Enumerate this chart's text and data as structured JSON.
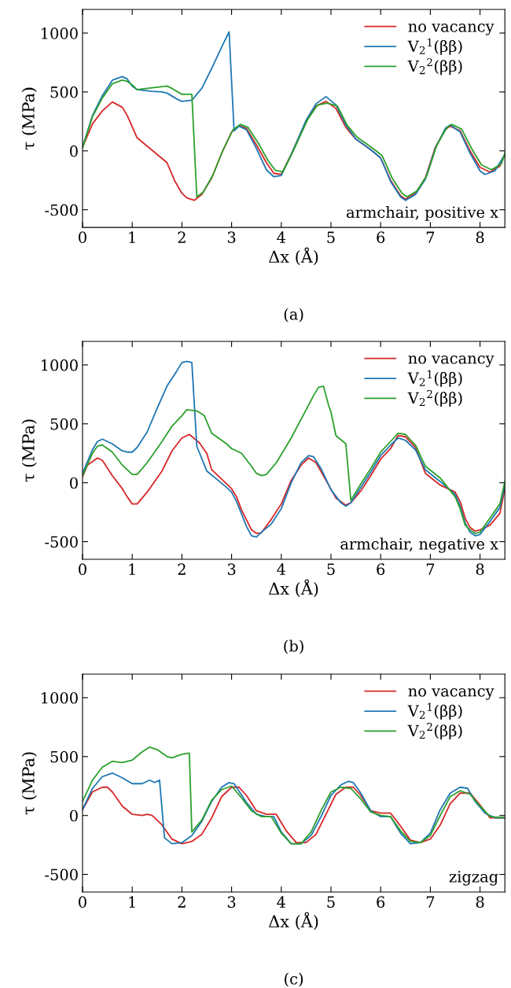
{
  "chart_data": [
    {
      "type": "line",
      "xlabel": "Δx (Å)",
      "ylabel": "τ (MPa)",
      "xlim": [
        0,
        8.5
      ],
      "ylim": [
        -650,
        1200
      ],
      "xticks": [
        0,
        1,
        2,
        3,
        4,
        5,
        6,
        7,
        8
      ],
      "yticks": [
        -500,
        0,
        500,
        1000
      ],
      "legend": "top right",
      "grid": false,
      "line_style": "solid",
      "marker": "none",
      "annotations": [
        "armchair, positive x",
        "(a)"
      ],
      "series": [
        {
          "name": "no vacancy",
          "color": "#d62728",
          "x": [
            0,
            0.2,
            0.4,
            0.6,
            0.8,
            0.9,
            1.1,
            1.3,
            1.5,
            1.7,
            1.85,
            2.0,
            2.1,
            2.25,
            2.4,
            2.6,
            2.8,
            3.0,
            3.15,
            3.3,
            3.5,
            3.7,
            3.85,
            4.0,
            4.2,
            4.5,
            4.7,
            4.9,
            5.1,
            5.3,
            5.5,
            5.8,
            6.0,
            6.2,
            6.4,
            6.5,
            6.7,
            6.9,
            7.1,
            7.3,
            7.4,
            7.6,
            7.8,
            8.0,
            8.2,
            8.4,
            8.5
          ],
          "values": [
            30,
            230,
            340,
            415,
            370,
            300,
            110,
            40,
            -30,
            -100,
            -250,
            -360,
            -400,
            -420,
            -370,
            -230,
            -20,
            160,
            215,
            190,
            50,
            -100,
            -190,
            -200,
            -30,
            250,
            380,
            420,
            360,
            200,
            100,
            10,
            -60,
            -250,
            -380,
            -410,
            -360,
            -230,
            30,
            180,
            210,
            170,
            0,
            -140,
            -180,
            -130,
            -30
          ]
        },
        {
          "name": "V$_{2}$$^{1}$(ββ)",
          "color": "#1f77b4",
          "x": [
            0,
            0.2,
            0.4,
            0.6,
            0.8,
            0.9,
            1.0,
            1.1,
            1.4,
            1.6,
            1.7,
            1.9,
            2.0,
            2.2,
            2.4,
            2.6,
            2.8,
            2.95,
            3.05,
            3.15,
            3.3,
            3.5,
            3.7,
            3.85,
            4.0,
            4.2,
            4.5,
            4.7,
            4.9,
            5.1,
            5.3,
            5.5,
            5.8,
            6.0,
            6.2,
            6.4,
            6.5,
            6.7,
            6.9,
            7.1,
            7.3,
            7.4,
            7.6,
            7.8,
            8.0,
            8.1,
            8.3,
            8.5
          ],
          "values": [
            30,
            300,
            470,
            600,
            630,
            610,
            550,
            520,
            505,
            500,
            490,
            440,
            420,
            430,
            530,
            700,
            880,
            1010,
            170,
            210,
            180,
            20,
            -160,
            -220,
            -210,
            -30,
            260,
            400,
            460,
            390,
            220,
            100,
            10,
            -60,
            -260,
            -390,
            -420,
            -370,
            -240,
            20,
            190,
            220,
            160,
            -20,
            -170,
            -200,
            -170,
            -30
          ]
        },
        {
          "name": "V$_{2}$$^{2}$(ββ)",
          "color": "#2ca02c",
          "x": [
            0,
            0.2,
            0.4,
            0.6,
            0.8,
            0.9,
            1.0,
            1.1,
            1.3,
            1.5,
            1.7,
            1.8,
            2.0,
            2.2,
            2.3,
            2.43,
            2.63,
            2.83,
            3.03,
            3.18,
            3.33,
            3.53,
            3.73,
            3.88,
            4.03,
            4.23,
            4.53,
            4.73,
            4.93,
            5.13,
            5.33,
            5.53,
            5.83,
            6.03,
            6.23,
            6.43,
            6.53,
            6.73,
            6.93,
            7.13,
            7.33,
            7.43,
            7.63,
            7.83,
            8.03,
            8.23,
            8.43,
            8.5
          ],
          "values": [
            30,
            290,
            450,
            570,
            600,
            590,
            560,
            520,
            530,
            540,
            550,
            530,
            480,
            480,
            -390,
            -350,
            -200,
            10,
            180,
            225,
            200,
            70,
            -80,
            -165,
            -180,
            -10,
            265,
            390,
            405,
            380,
            215,
            115,
            25,
            -40,
            -230,
            -360,
            -390,
            -340,
            -210,
            50,
            195,
            225,
            185,
            20,
            -120,
            -160,
            -110,
            -20
          ]
        }
      ]
    },
    {
      "type": "line",
      "xlabel": "Δx (Å)",
      "ylabel": "τ (MPa)",
      "xlim": [
        0,
        8.5
      ],
      "ylim": [
        -650,
        1200
      ],
      "xticks": [
        0,
        1,
        2,
        3,
        4,
        5,
        6,
        7,
        8
      ],
      "yticks": [
        -500,
        0,
        500,
        1000
      ],
      "legend": "top right",
      "grid": false,
      "line_style": "solid",
      "marker": "none",
      "annotations": [
        "armchair, negative x",
        "(b)"
      ],
      "series": [
        {
          "name": "no vacancy",
          "color": "#d62728",
          "x": [
            0,
            0.1,
            0.3,
            0.4,
            0.6,
            0.8,
            0.9,
            1.0,
            1.1,
            1.3,
            1.6,
            1.8,
            2.0,
            2.15,
            2.35,
            2.5,
            2.6,
            2.8,
            3.0,
            3.1,
            3.2,
            3.4,
            3.5,
            3.6,
            3.8,
            4.0,
            4.2,
            4.4,
            4.55,
            4.7,
            4.9,
            5.1,
            5.3,
            5.4,
            5.6,
            5.8,
            6.0,
            6.2,
            6.35,
            6.5,
            6.7,
            6.9,
            7.2,
            7.5,
            7.6,
            7.7,
            7.8,
            7.9,
            8.0,
            8.2,
            8.4,
            8.5
          ],
          "values": [
            50,
            150,
            210,
            190,
            60,
            -50,
            -120,
            -180,
            -180,
            -80,
            100,
            270,
            380,
            410,
            340,
            250,
            110,
            30,
            -50,
            -120,
            -230,
            -400,
            -430,
            -425,
            -310,
            -180,
            20,
            150,
            210,
            170,
            20,
            -130,
            -190,
            -170,
            -70,
            60,
            200,
            290,
            400,
            390,
            300,
            80,
            -20,
            -80,
            -160,
            -300,
            -380,
            -410,
            -400,
            -360,
            -260,
            -50
          ]
        },
        {
          "name": "V$_{2}$$^{1}$(ββ)",
          "color": "#1f77b4",
          "x": [
            0,
            0.2,
            0.3,
            0.4,
            0.6,
            0.8,
            0.9,
            1.0,
            1.1,
            1.3,
            1.5,
            1.7,
            1.9,
            2.0,
            2.1,
            2.2,
            2.3,
            2.5,
            2.7,
            2.9,
            3.0,
            3.1,
            3.3,
            3.4,
            3.5,
            3.6,
            3.8,
            4.0,
            4.2,
            4.4,
            4.55,
            4.65,
            4.8,
            5.0,
            5.2,
            5.3,
            5.4,
            5.6,
            5.8,
            6.0,
            6.2,
            6.35,
            6.5,
            6.7,
            6.9,
            7.2,
            7.5,
            7.6,
            7.7,
            7.8,
            7.9,
            8.0,
            8.2,
            8.4,
            8.5
          ],
          "values": [
            80,
            280,
            350,
            370,
            330,
            270,
            260,
            260,
            300,
            430,
            630,
            820,
            950,
            1020,
            1030,
            1020,
            310,
            100,
            30,
            -40,
            -80,
            -160,
            -370,
            -450,
            -460,
            -420,
            -350,
            -220,
            0,
            170,
            230,
            220,
            120,
            -60,
            -170,
            -200,
            -170,
            -40,
            90,
            230,
            320,
            380,
            360,
            280,
            110,
            10,
            -100,
            -200,
            -340,
            -420,
            -450,
            -440,
            -330,
            -210,
            -20
          ]
        },
        {
          "name": "V$_{2}$$^{2}$(ββ)",
          "color": "#2ca02c",
          "x": [
            0,
            0.2,
            0.3,
            0.4,
            0.6,
            0.8,
            1.0,
            1.1,
            1.3,
            1.6,
            1.8,
            2.0,
            2.1,
            2.3,
            2.45,
            2.6,
            2.9,
            3.0,
            3.2,
            3.4,
            3.5,
            3.6,
            3.7,
            3.9,
            4.2,
            4.5,
            4.65,
            4.75,
            4.85,
            4.95,
            5.0,
            5.1,
            5.3,
            5.4,
            5.6,
            5.8,
            6.0,
            6.2,
            6.35,
            6.5,
            6.7,
            6.9,
            7.2,
            7.5,
            7.6,
            7.7,
            7.8,
            7.9,
            8.0,
            8.2,
            8.4,
            8.5
          ],
          "values": [
            60,
            250,
            310,
            320,
            260,
            150,
            70,
            70,
            170,
            350,
            480,
            570,
            620,
            610,
            570,
            420,
            330,
            290,
            250,
            140,
            80,
            60,
            70,
            170,
            380,
            620,
            740,
            810,
            820,
            660,
            600,
            400,
            330,
            -150,
            -10,
            120,
            260,
            350,
            420,
            410,
            320,
            140,
            40,
            -120,
            -220,
            -360,
            -400,
            -430,
            -420,
            -300,
            -180,
            10
          ]
        }
      ]
    },
    {
      "type": "line",
      "xlabel": "Δx (Å)",
      "ylabel": "τ (MPa)",
      "xlim": [
        0,
        8.5
      ],
      "ylim": [
        -650,
        1200
      ],
      "xticks": [
        0,
        1,
        2,
        3,
        4,
        5,
        6,
        7,
        8
      ],
      "yticks": [
        -500,
        0,
        500,
        1000
      ],
      "legend": "top right",
      "grid": false,
      "line_style": "solid",
      "marker": "none",
      "annotations": [
        "zigzag",
        "(c)"
      ],
      "series": [
        {
          "name": "no vacancy",
          "color": "#d62728",
          "x": [
            0,
            0.2,
            0.4,
            0.5,
            0.6,
            0.8,
            1.0,
            1.2,
            1.3,
            1.4,
            1.6,
            1.8,
            2.0,
            2.2,
            2.4,
            2.6,
            2.8,
            3.0,
            3.15,
            3.3,
            3.5,
            3.7,
            3.9,
            4.1,
            4.3,
            4.5,
            4.7,
            4.9,
            5.1,
            5.3,
            5.45,
            5.6,
            5.8,
            6.0,
            6.2,
            6.4,
            6.6,
            6.8,
            7.0,
            7.2,
            7.4,
            7.6,
            7.8,
            8.0,
            8.2,
            8.4,
            8.5
          ],
          "values": [
            50,
            200,
            240,
            240,
            200,
            80,
            10,
            0,
            10,
            0,
            -80,
            -200,
            -240,
            -220,
            -160,
            -20,
            160,
            240,
            240,
            170,
            40,
            10,
            10,
            -130,
            -230,
            -230,
            -160,
            10,
            180,
            240,
            240,
            170,
            40,
            20,
            20,
            -90,
            -210,
            -230,
            -200,
            -80,
            100,
            190,
            190,
            90,
            -20,
            -20,
            -20
          ]
        },
        {
          "name": "V$_{2}$$^{1}$(ββ)",
          "color": "#1f77b4",
          "x": [
            0,
            0.2,
            0.4,
            0.6,
            0.8,
            1.0,
            1.2,
            1.35,
            1.45,
            1.55,
            1.65,
            1.8,
            2.0,
            2.2,
            2.4,
            2.6,
            2.8,
            2.95,
            3.05,
            3.3,
            3.5,
            3.7,
            3.85,
            4.0,
            4.2,
            4.4,
            4.6,
            4.8,
            5.0,
            5.2,
            5.35,
            5.45,
            5.6,
            5.8,
            6.0,
            6.2,
            6.4,
            6.6,
            6.8,
            7.0,
            7.2,
            7.4,
            7.6,
            7.75,
            7.9,
            8.1,
            8.3,
            8.5
          ],
          "values": [
            50,
            230,
            330,
            360,
            320,
            270,
            270,
            300,
            280,
            300,
            -190,
            -240,
            -230,
            -170,
            -50,
            120,
            240,
            280,
            270,
            110,
            10,
            -10,
            -10,
            -140,
            -240,
            -240,
            -170,
            -10,
            170,
            260,
            290,
            280,
            190,
            40,
            -10,
            -10,
            -150,
            -240,
            -230,
            -150,
            50,
            190,
            240,
            230,
            120,
            20,
            -20,
            -20
          ]
        },
        {
          "name": "V$_{2}$$^{2}$(ββ)",
          "color": "#2ca02c",
          "x": [
            0,
            0.2,
            0.4,
            0.6,
            0.8,
            1.0,
            1.2,
            1.35,
            1.5,
            1.7,
            1.8,
            2.0,
            2.15,
            2.2,
            2.4,
            2.6,
            2.8,
            3.0,
            3.2,
            3.4,
            3.6,
            3.8,
            4.0,
            4.2,
            4.4,
            4.6,
            4.8,
            5.0,
            5.2,
            5.4,
            5.6,
            5.8,
            6.0,
            6.2,
            6.4,
            6.6,
            6.8,
            7.0,
            7.2,
            7.4,
            7.6,
            7.8,
            8.0,
            8.2,
            8.5
          ],
          "values": [
            120,
            300,
            410,
            460,
            450,
            470,
            540,
            580,
            560,
            500,
            490,
            520,
            530,
            -140,
            -40,
            130,
            220,
            250,
            150,
            40,
            -10,
            -10,
            -150,
            -240,
            -240,
            -140,
            40,
            200,
            240,
            230,
            140,
            30,
            0,
            -10,
            -130,
            -220,
            -230,
            -170,
            0,
            160,
            210,
            180,
            80,
            -10,
            -20
          ]
        }
      ]
    }
  ]
}
